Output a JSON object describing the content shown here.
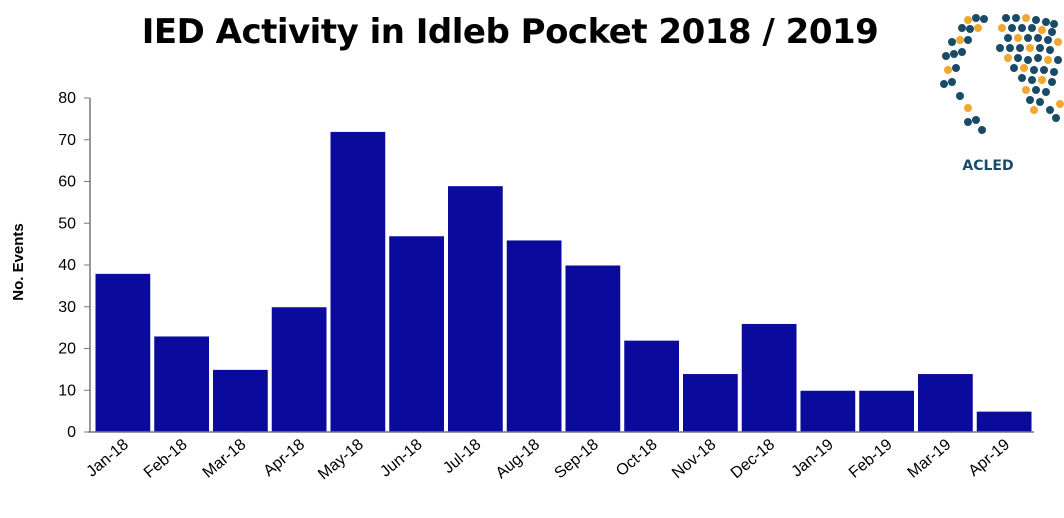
{
  "chart_data": {
    "type": "bar",
    "title": "IED Activity in Idleb Pocket 2018 / 2019",
    "xlabel": "",
    "ylabel": "No. Events",
    "ylim": [
      0,
      80
    ],
    "yticks": [
      0,
      10,
      20,
      30,
      40,
      50,
      60,
      70,
      80
    ],
    "categories": [
      "Jan-18",
      "Feb-18",
      "Mar-18",
      "Apr-18",
      "May-18",
      "Jun-18",
      "Jul-18",
      "Aug-18",
      "Sep-18",
      "Oct-18",
      "Nov-18",
      "Dec-18",
      "Jan-19",
      "Feb-19",
      "Mar-19",
      "Apr-19"
    ],
    "values": [
      38,
      23,
      15,
      30,
      72,
      47,
      59,
      46,
      40,
      22,
      14,
      26,
      10,
      10,
      14,
      5
    ],
    "bar_color": "#0a0a9c",
    "grid": false,
    "legend": "none"
  },
  "logo": {
    "text": "ACLED",
    "name": "acled-globe-icon"
  }
}
